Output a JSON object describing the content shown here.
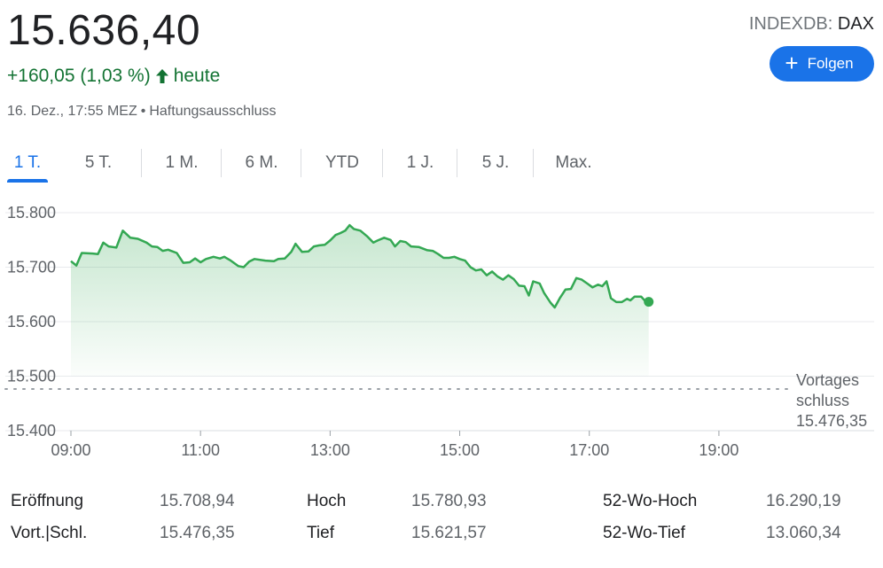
{
  "header": {
    "price": "15.636,40",
    "change": "+160,05 (1,03 %)",
    "change_suffix": "heute",
    "timestamp": "16. Dez., 17:55 MEZ",
    "disclaimer": "Haftungsausschluss",
    "exchange": "INDEXDB:",
    "symbol": "DAX",
    "follow_label": "Folgen"
  },
  "colors": {
    "positive": "#137333",
    "line": "#34a853",
    "accent": "#1a73e8"
  },
  "tabs": [
    {
      "label": "1 T.",
      "active": true
    },
    {
      "label": "5 T.",
      "active": false
    },
    {
      "label": "1 M.",
      "active": false
    },
    {
      "label": "6 M.",
      "active": false
    },
    {
      "label": "YTD",
      "active": false
    },
    {
      "label": "1 J.",
      "active": false
    },
    {
      "label": "5 J.",
      "active": false
    },
    {
      "label": "Max.",
      "active": false
    }
  ],
  "chart_data": {
    "type": "area",
    "x_unit": "time of day",
    "ylim": [
      15400,
      15800
    ],
    "xlim": [
      "09:00",
      "21:00"
    ],
    "y_ticks": [
      {
        "value": 15800,
        "label": "15.800"
      },
      {
        "value": 15700,
        "label": "15.700"
      },
      {
        "value": 15600,
        "label": "15.600"
      },
      {
        "value": 15500,
        "label": "15.500"
      },
      {
        "value": 15400,
        "label": "15.400"
      }
    ],
    "x_ticks": [
      {
        "value": "09:00",
        "label": "09:00"
      },
      {
        "value": "11:00",
        "label": "11:00"
      },
      {
        "value": "13:00",
        "label": "13:00"
      },
      {
        "value": "15:00",
        "label": "15:00"
      },
      {
        "value": "17:00",
        "label": "17:00"
      },
      {
        "value": "19:00",
        "label": "19:00"
      }
    ],
    "reference_line": {
      "value": 15476.35,
      "label_line1": "Vortages",
      "label_line2": "schluss",
      "label_value": "15.476,35"
    },
    "grid": true,
    "series": [
      {
        "points": [
          [
            "09:00",
            15711
          ],
          [
            "09:05",
            15703
          ],
          [
            "09:10",
            15726
          ],
          [
            "09:20",
            15725
          ],
          [
            "09:25",
            15724
          ],
          [
            "09:30",
            15745
          ],
          [
            "09:35",
            15738
          ],
          [
            "09:42",
            15736
          ],
          [
            "09:48",
            15767
          ],
          [
            "09:55",
            15754
          ],
          [
            "10:02",
            15752
          ],
          [
            "10:10",
            15745
          ],
          [
            "10:15",
            15738
          ],
          [
            "10:20",
            15737
          ],
          [
            "10:25",
            15730
          ],
          [
            "10:30",
            15732
          ],
          [
            "10:38",
            15726
          ],
          [
            "10:44",
            15708
          ],
          [
            "10:50",
            15709
          ],
          [
            "10:55",
            15716
          ],
          [
            "11:00",
            15709
          ],
          [
            "11:05",
            15715
          ],
          [
            "11:12",
            15719
          ],
          [
            "11:18",
            15716
          ],
          [
            "11:22",
            15719
          ],
          [
            "11:28",
            15712
          ],
          [
            "11:35",
            15702
          ],
          [
            "11:40",
            15700
          ],
          [
            "11:45",
            15710
          ],
          [
            "11:50",
            15715
          ],
          [
            "12:00",
            15712
          ],
          [
            "12:08",
            15711
          ],
          [
            "12:12",
            15715
          ],
          [
            "12:18",
            15716
          ],
          [
            "12:24",
            15728
          ],
          [
            "12:28",
            15743
          ],
          [
            "12:34",
            15728
          ],
          [
            "12:40",
            15729
          ],
          [
            "12:45",
            15738
          ],
          [
            "12:50",
            15740
          ],
          [
            "12:55",
            15741
          ],
          [
            "13:00",
            15749
          ],
          [
            "13:05",
            15759
          ],
          [
            "13:10",
            15763
          ],
          [
            "13:14",
            15767
          ],
          [
            "13:18",
            15777
          ],
          [
            "13:22",
            15770
          ],
          [
            "13:28",
            15767
          ],
          [
            "13:34",
            15757
          ],
          [
            "13:40",
            15745
          ],
          [
            "13:44",
            15749
          ],
          [
            "13:50",
            15754
          ],
          [
            "13:56",
            15750
          ],
          [
            "14:00",
            15738
          ],
          [
            "14:05",
            15748
          ],
          [
            "14:10",
            15746
          ],
          [
            "14:15",
            15738
          ],
          [
            "14:22",
            15737
          ],
          [
            "14:30",
            15731
          ],
          [
            "14:35",
            15730
          ],
          [
            "14:40",
            15724
          ],
          [
            "14:45",
            15717
          ],
          [
            "14:50",
            15717
          ],
          [
            "14:55",
            15719
          ],
          [
            "15:00",
            15715
          ],
          [
            "15:05",
            15712
          ],
          [
            "15:10",
            15700
          ],
          [
            "15:15",
            15694
          ],
          [
            "15:20",
            15696
          ],
          [
            "15:25",
            15685
          ],
          [
            "15:30",
            15692
          ],
          [
            "15:35",
            15683
          ],
          [
            "15:40",
            15677
          ],
          [
            "15:45",
            15685
          ],
          [
            "15:50",
            15678
          ],
          [
            "15:55",
            15666
          ],
          [
            "16:00",
            15665
          ],
          [
            "16:04",
            15648
          ],
          [
            "16:08",
            15674
          ],
          [
            "16:14",
            15670
          ],
          [
            "16:18",
            15653
          ],
          [
            "16:24",
            15635
          ],
          [
            "16:28",
            15626
          ],
          [
            "16:33",
            15644
          ],
          [
            "16:38",
            15659
          ],
          [
            "16:43",
            15660
          ],
          [
            "16:48",
            15680
          ],
          [
            "16:53",
            15677
          ],
          [
            "16:58",
            15670
          ],
          [
            "17:03",
            15663
          ],
          [
            "17:08",
            15668
          ],
          [
            "17:12",
            15665
          ],
          [
            "17:16",
            15674
          ],
          [
            "17:20",
            15643
          ],
          [
            "17:25",
            15636
          ],
          [
            "17:30",
            15636
          ],
          [
            "17:35",
            15642
          ],
          [
            "17:38",
            15639
          ],
          [
            "17:42",
            15646
          ],
          [
            "17:48",
            15646
          ],
          [
            "17:52",
            15637
          ],
          [
            "17:55",
            15636.4
          ]
        ]
      }
    ]
  },
  "stats": [
    {
      "label": "Eröffnung",
      "value": "15.708,94"
    },
    {
      "label": "Vort.|Schl.",
      "value": "15.476,35"
    },
    {
      "label": "Hoch",
      "value": "15.780,93"
    },
    {
      "label": "Tief",
      "value": "15.621,57"
    },
    {
      "label": "52-Wo-Hoch",
      "value": "16.290,19"
    },
    {
      "label": "52-Wo-Tief",
      "value": "13.060,34"
    }
  ]
}
